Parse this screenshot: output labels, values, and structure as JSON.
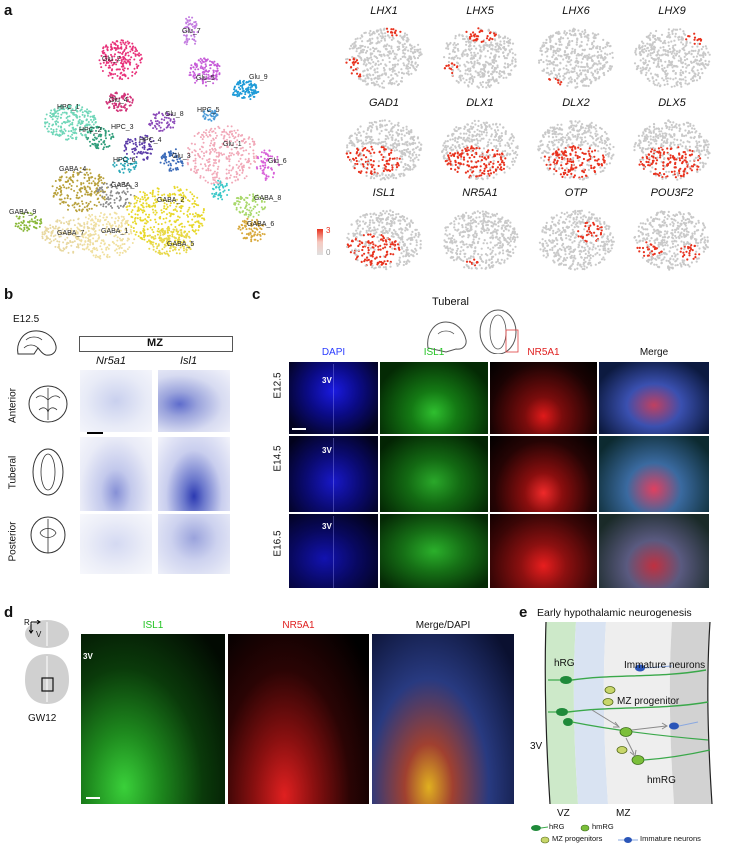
{
  "panels": {
    "a": "a",
    "b": "b",
    "c": "c",
    "d": "d",
    "e": "e"
  },
  "panel_a": {
    "clusters": [
      "Glu_7",
      "Glu_2",
      "Glu_5",
      "Glu_9",
      "HPC_1",
      "Glu_4",
      "HPC_5",
      "Glu_8",
      "HPC_2",
      "HPC_3",
      "HPC_4",
      "Glu_3",
      "Glu_1",
      "HPC_6",
      "Glu_6",
      "GABA_4",
      "GABA_3",
      "GABA_2",
      "GABA_8",
      "GABA_9",
      "GABA_7",
      "GABA_1",
      "GABA_6",
      "GABA_5"
    ],
    "genes": [
      "LHX1",
      "LHX5",
      "LHX6",
      "LHX9",
      "GAD1",
      "DLX1",
      "DLX2",
      "DLX5",
      "ISL1",
      "NR5A1",
      "OTP",
      "POU3F2"
    ],
    "scale_max": "3",
    "scale_min": "0",
    "colors": {
      "high": "#e8321e",
      "low": "#c9c9c9"
    }
  },
  "panel_b": {
    "stage": "E12.5",
    "region_header": "MZ",
    "genes": [
      "Nr5a1",
      "Isl1"
    ],
    "rows": [
      "Anterior",
      "Tuberal",
      "Posterior"
    ]
  },
  "panel_c": {
    "region": "Tuberal",
    "channels": [
      "DAPI",
      "ISL1",
      "NR5A1",
      "Merge"
    ],
    "channel_colors": [
      "#2a3cff",
      "#22c322",
      "#e02020",
      "#111111"
    ],
    "rows": [
      "E12.5",
      "E14.5",
      "E16.5"
    ],
    "ventricle": "3V"
  },
  "panel_d": {
    "axis_r": "R",
    "axis_v": "V",
    "stage": "GW12",
    "ventricle": "3V",
    "channels": [
      "ISL1",
      "NR5A1",
      "Merge/DAPI"
    ],
    "channel_colors": [
      "#22c322",
      "#e02020",
      "#111111"
    ]
  },
  "panel_e": {
    "title": "Early hypothalamic neurogenesis",
    "labels": {
      "hrg": "hRG",
      "immature": "Immature neurons",
      "mz_prog": "MZ progenitor",
      "ventricle": "3V",
      "hmrg": "hmRG",
      "vz": "VZ",
      "mz": "MZ"
    },
    "legend": [
      "hRG",
      "hmRG",
      "MZ progenitors",
      "Immature neurons"
    ]
  }
}
